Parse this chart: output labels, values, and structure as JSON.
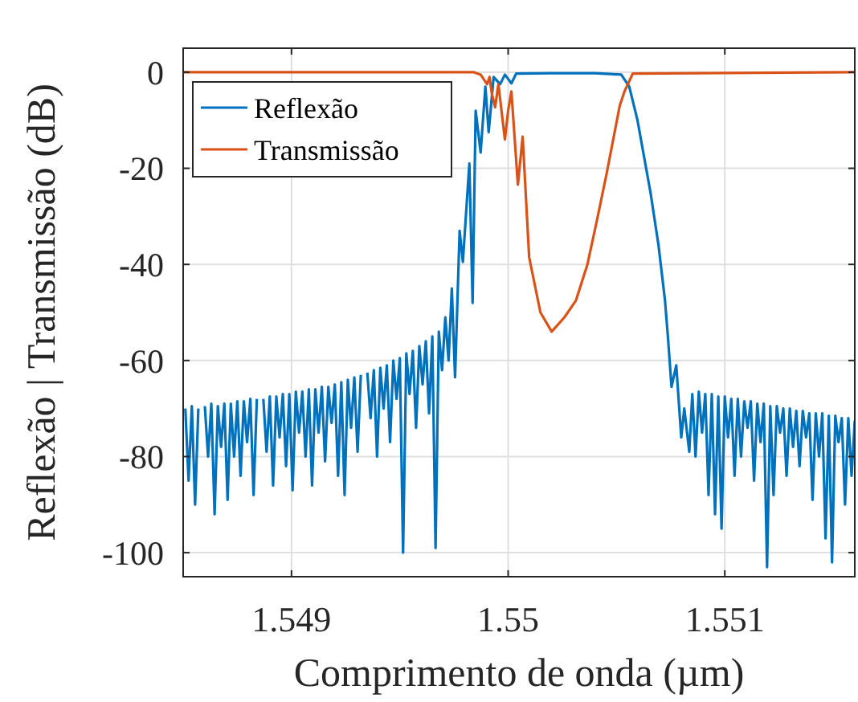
{
  "chart_data": {
    "type": "line",
    "xlabel": "Comprimento de onda (µm)",
    "ylabel": "Reflexão | Transmissão (dB)",
    "xlim": [
      1.5485,
      1.5516
    ],
    "xticks": [
      1.549,
      1.55,
      1.551
    ],
    "ylim": [
      -105,
      5
    ],
    "yticks": [
      0,
      -20,
      -40,
      -60,
      -80,
      -100
    ],
    "grid": true,
    "legend": "top left",
    "line_style": "solid",
    "marker": "none",
    "series": [
      {
        "name": "Reflexão",
        "color": "#0072bd",
        "x": [
          1.54851,
          1.548525,
          1.54854,
          1.548555,
          1.54857,
          1.548585,
          1.5486,
          1.548615,
          1.54863,
          1.548645,
          1.54866,
          1.548675,
          1.54869,
          1.548705,
          1.54872,
          1.548735,
          1.54875,
          1.548765,
          1.54878,
          1.548795,
          1.54881,
          1.548825,
          1.54884,
          1.548855,
          1.54887,
          1.548885,
          1.5489,
          1.548915,
          1.54893,
          1.548945,
          1.54896,
          1.548975,
          1.54899,
          1.549005,
          1.54902,
          1.549035,
          1.54905,
          1.549065,
          1.54908,
          1.549095,
          1.54911,
          1.549125,
          1.54914,
          1.549155,
          1.54917,
          1.549185,
          1.5492,
          1.549215,
          1.54923,
          1.549245,
          1.54926,
          1.549275,
          1.54929,
          1.549305,
          1.54932,
          1.549335,
          1.54935,
          1.549365,
          1.54938,
          1.549395,
          1.54941,
          1.549425,
          1.54944,
          1.549455,
          1.54947,
          1.549485,
          1.5495,
          1.549515,
          1.54953,
          1.549545,
          1.54956,
          1.549575,
          1.54959,
          1.549605,
          1.54962,
          1.549635,
          1.54965,
          1.549665,
          1.54968,
          1.549695,
          1.54971,
          1.549725,
          1.54974,
          1.549755,
          1.549776,
          1.549791,
          1.549821,
          1.549836,
          1.54985,
          1.549873,
          1.549895,
          1.54991,
          1.549933,
          1.549963,
          1.549985,
          1.550015,
          1.550037,
          1.5502,
          1.5504,
          1.550522,
          1.550559,
          1.550597,
          1.550657,
          1.550694,
          1.550724,
          1.550739,
          1.550754,
          1.550776,
          1.550799,
          1.550813,
          1.550836,
          1.55085,
          1.550865,
          1.55088,
          1.550895,
          1.55091,
          1.550925,
          1.55094,
          1.550955,
          1.55097,
          1.550985,
          1.551,
          1.551015,
          1.55103,
          1.551045,
          1.55106,
          1.551075,
          1.55109,
          1.551105,
          1.55112,
          1.551135,
          1.55115,
          1.551165,
          1.55118,
          1.551195,
          1.55121,
          1.551225,
          1.55124,
          1.551255,
          1.55127,
          1.551285,
          1.5513,
          1.551315,
          1.55133,
          1.551345,
          1.55136,
          1.551375,
          1.55139,
          1.551405,
          1.55142,
          1.551435,
          1.55145,
          1.551465,
          1.55148,
          1.551495,
          1.55151,
          1.551525,
          1.55154,
          1.551555,
          1.55157,
          1.551585,
          1.5516
        ],
        "values": [
          -70,
          -85,
          -69.5,
          -90,
          -70,
          null,
          -69.5,
          -80,
          -69,
          -92,
          -69.5,
          -78,
          -69,
          -89,
          -69,
          -80,
          -68.5,
          -84,
          -68.5,
          -77,
          -68,
          -88,
          -68,
          null,
          -68,
          -79,
          -67.5,
          -86,
          -67.5,
          -76,
          -67,
          -82,
          -67,
          -87,
          -66.5,
          -75,
          -66.5,
          -80,
          -66,
          -86,
          -66,
          -75,
          -65.5,
          -81,
          -65.5,
          -73,
          -65,
          -84,
          -64.5,
          -88,
          -64,
          -74,
          -63.5,
          -79,
          -63,
          null,
          -62.5,
          -72,
          -62,
          -80,
          -61.5,
          -70,
          -61,
          -77,
          -60,
          -68,
          -59.5,
          -100,
          -58.5,
          -67,
          -58,
          -74,
          -57,
          -65,
          -56,
          -71,
          -55,
          -99,
          -54,
          -62,
          -51,
          -60,
          -45,
          -63.5,
          -33,
          -39.5,
          -19,
          -48,
          -8,
          -16.7,
          -3,
          -12.5,
          -1,
          -2.5,
          -0.5,
          -2.3,
          -0.3,
          -0.2,
          -0.2,
          -0.5,
          -3,
          -10,
          -25,
          -36,
          -47.5,
          -56,
          -65.5,
          -61,
          -76,
          -70,
          -79,
          -67,
          -80,
          -66.5,
          -75,
          -67,
          -88,
          -67,
          -92,
          -67.5,
          -95,
          -67.5,
          -76,
          -68,
          -84,
          -68,
          -80,
          -68.5,
          -74,
          -68.5,
          -85,
          -69,
          -77,
          -69,
          -103,
          -69.5,
          -88,
          -69.5,
          -75,
          -70,
          -84,
          -70,
          -78,
          -70.5,
          -82,
          -70.5,
          -76,
          -71,
          -89,
          -71,
          -80,
          -71,
          -97,
          -71.5,
          -102,
          -71.5,
          -77,
          -72,
          -90,
          -72,
          -84,
          -72.5
        ]
      },
      {
        "name": "Transmissão",
        "color": "#d95319",
        "x": [
          1.5485,
          1.549843,
          1.549873,
          1.549903,
          1.549914,
          1.549925,
          1.54994,
          1.549955,
          1.549985,
          1.55,
          1.550015,
          1.550045,
          1.550067,
          1.550097,
          1.550149,
          1.550201,
          1.55026,
          1.550313,
          1.550366,
          1.55041,
          1.550455,
          1.550485,
          1.550515,
          1.550537,
          1.550575,
          1.5516
        ],
        "values": [
          0,
          0,
          -0.5,
          -2.5,
          -1,
          -4.5,
          -7.3,
          -2.5,
          -14,
          -8,
          -4,
          -23.4,
          -13.4,
          -38.5,
          -50,
          -54,
          -51,
          -47.5,
          -40,
          -30.8,
          -21,
          -14,
          -7,
          -4,
          -0.3,
          0
        ]
      }
    ]
  }
}
